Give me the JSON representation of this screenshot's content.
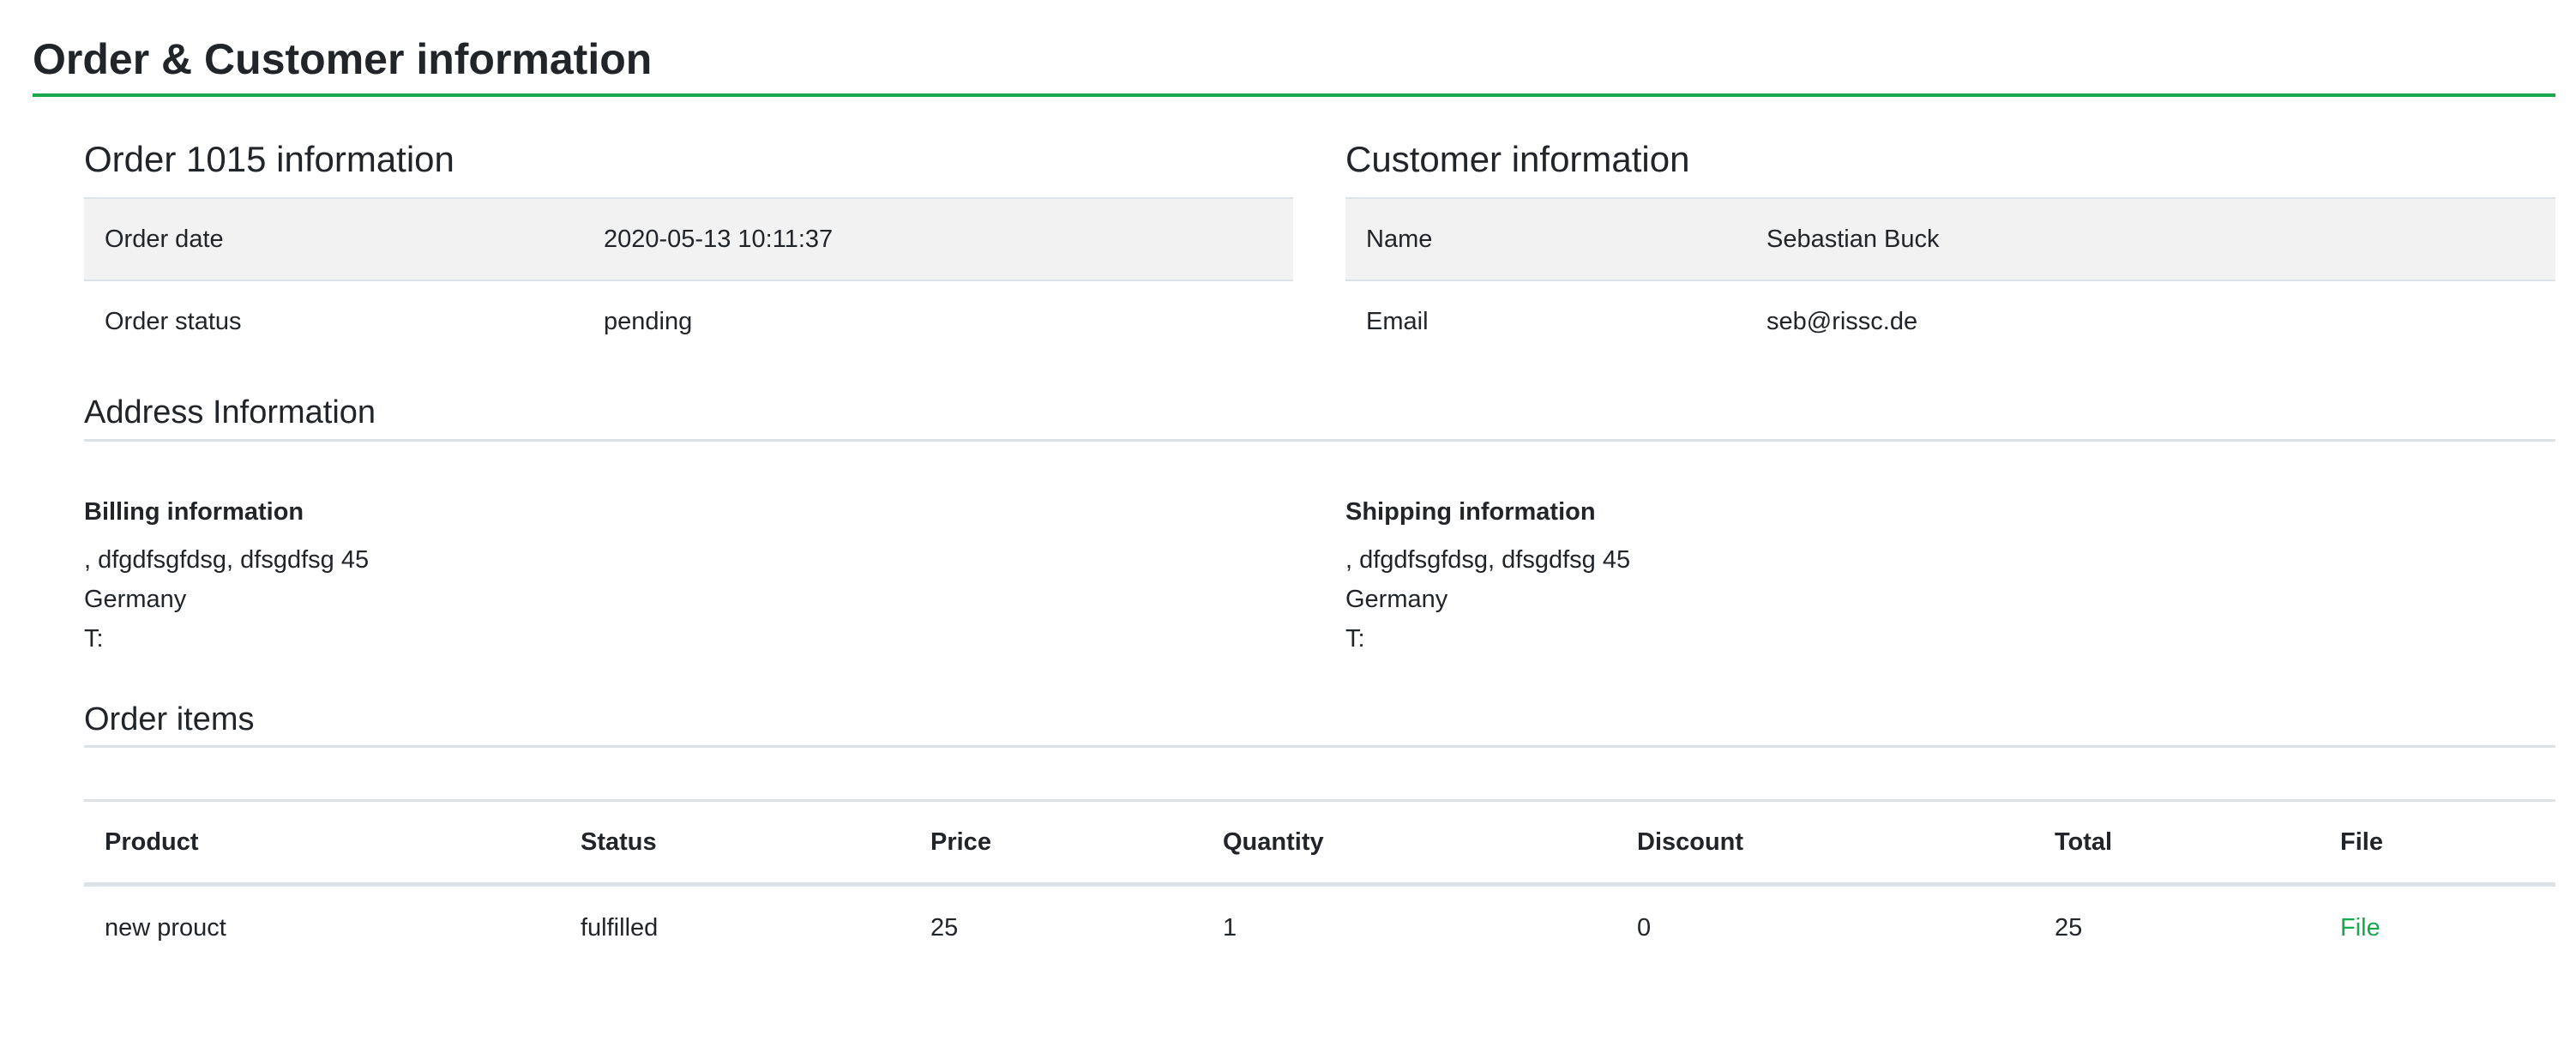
{
  "page_title": "Order & Customer information",
  "accent_color": "#1aa84f",
  "order": {
    "title": "Order 1015 information",
    "rows": [
      {
        "label": "Order date",
        "value": "2020-05-13 10:11:37"
      },
      {
        "label": "Order status",
        "value": "pending"
      }
    ]
  },
  "customer": {
    "title": "Customer information",
    "rows": [
      {
        "label": "Name",
        "value": "Sebastian Buck"
      },
      {
        "label": "Email",
        "value": "seb@rissc.de"
      }
    ]
  },
  "address": {
    "title": "Address Information",
    "billing": {
      "heading": "Billing information",
      "line1": ", dfgdfsgfdsg, dfsgdfsg 45",
      "country": "Germany",
      "phone": "T:"
    },
    "shipping": {
      "heading": "Shipping information",
      "line1": ", dfgdfsgfdsg, dfsgdfsg 45",
      "country": "Germany",
      "phone": "T:"
    }
  },
  "items": {
    "title": "Order items",
    "columns": [
      "Product",
      "Status",
      "Price",
      "Quantity",
      "Discount",
      "Total",
      "File"
    ],
    "rows": [
      {
        "product": "new prouct",
        "status": "fulfilled",
        "price": "25",
        "quantity": "1",
        "discount": "0",
        "total": "25",
        "file": "File"
      }
    ]
  }
}
